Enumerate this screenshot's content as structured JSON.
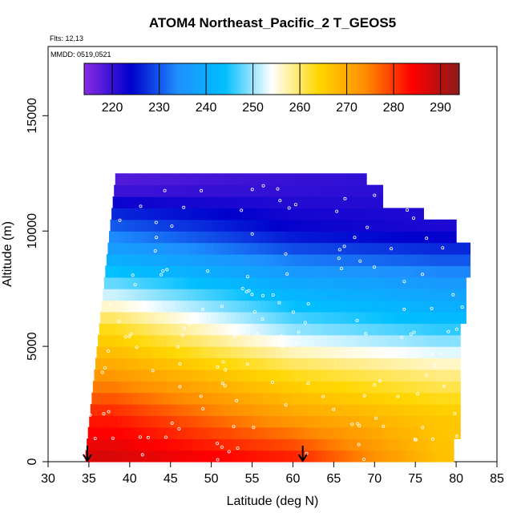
{
  "chart_data": {
    "type": "heatmap",
    "title": "ATOM4 Northeast_Pacific_2 T_GEOS5",
    "annotations": [
      "Flts: 12,13",
      "MMDD: 0519,0521"
    ],
    "xlabel": "Latitude (deg N)",
    "ylabel": "Altitude (m)",
    "xlim": [
      30,
      85
    ],
    "ylim": [
      0,
      18000
    ],
    "x_ticks": [
      30,
      35,
      40,
      45,
      50,
      55,
      60,
      65,
      70,
      75,
      80,
      85
    ],
    "y_ticks": [
      0,
      5000,
      10000,
      15000
    ],
    "colorbar": {
      "range": [
        214,
        294
      ],
      "ticks": [
        220,
        230,
        240,
        250,
        260,
        270,
        280,
        290
      ],
      "colors": [
        "#8a2be2",
        "#0000cd",
        "#1e90ff",
        "#00bfff",
        "#ffffff",
        "#ffd700",
        "#ff8c00",
        "#ff0000",
        "#8b1a1a"
      ],
      "position": "top"
    },
    "grid": false,
    "arrow_markers_latitude": [
      34.8,
      61.2
    ],
    "field_extent": {
      "latitude_range": [
        34.5,
        82
      ],
      "altitude_range": [
        0,
        12500
      ]
    },
    "temperature_profile_by_altitude": [
      {
        "altitude": 0,
        "temp_at_38N": 288,
        "temp_at_60N": 283,
        "temp_at_78N": 267
      },
      {
        "altitude": 2000,
        "temp_at_38N": 282,
        "temp_at_60N": 271,
        "temp_at_78N": 266
      },
      {
        "altitude": 4000,
        "temp_at_38N": 271,
        "temp_at_60N": 262,
        "temp_at_78N": 258
      },
      {
        "altitude": 6000,
        "temp_at_38N": 262,
        "temp_at_60N": 248,
        "temp_at_78N": 244
      },
      {
        "altitude": 8000,
        "temp_at_38N": 246,
        "temp_at_60N": 238,
        "temp_at_78N": 235
      },
      {
        "altitude": 10000,
        "temp_at_38N": 232,
        "temp_at_60N": 224,
        "temp_at_78N": 222
      },
      {
        "altitude": 12000,
        "temp_at_38N": 218,
        "temp_at_60N": 220,
        "temp_at_78N": 221
      }
    ]
  }
}
